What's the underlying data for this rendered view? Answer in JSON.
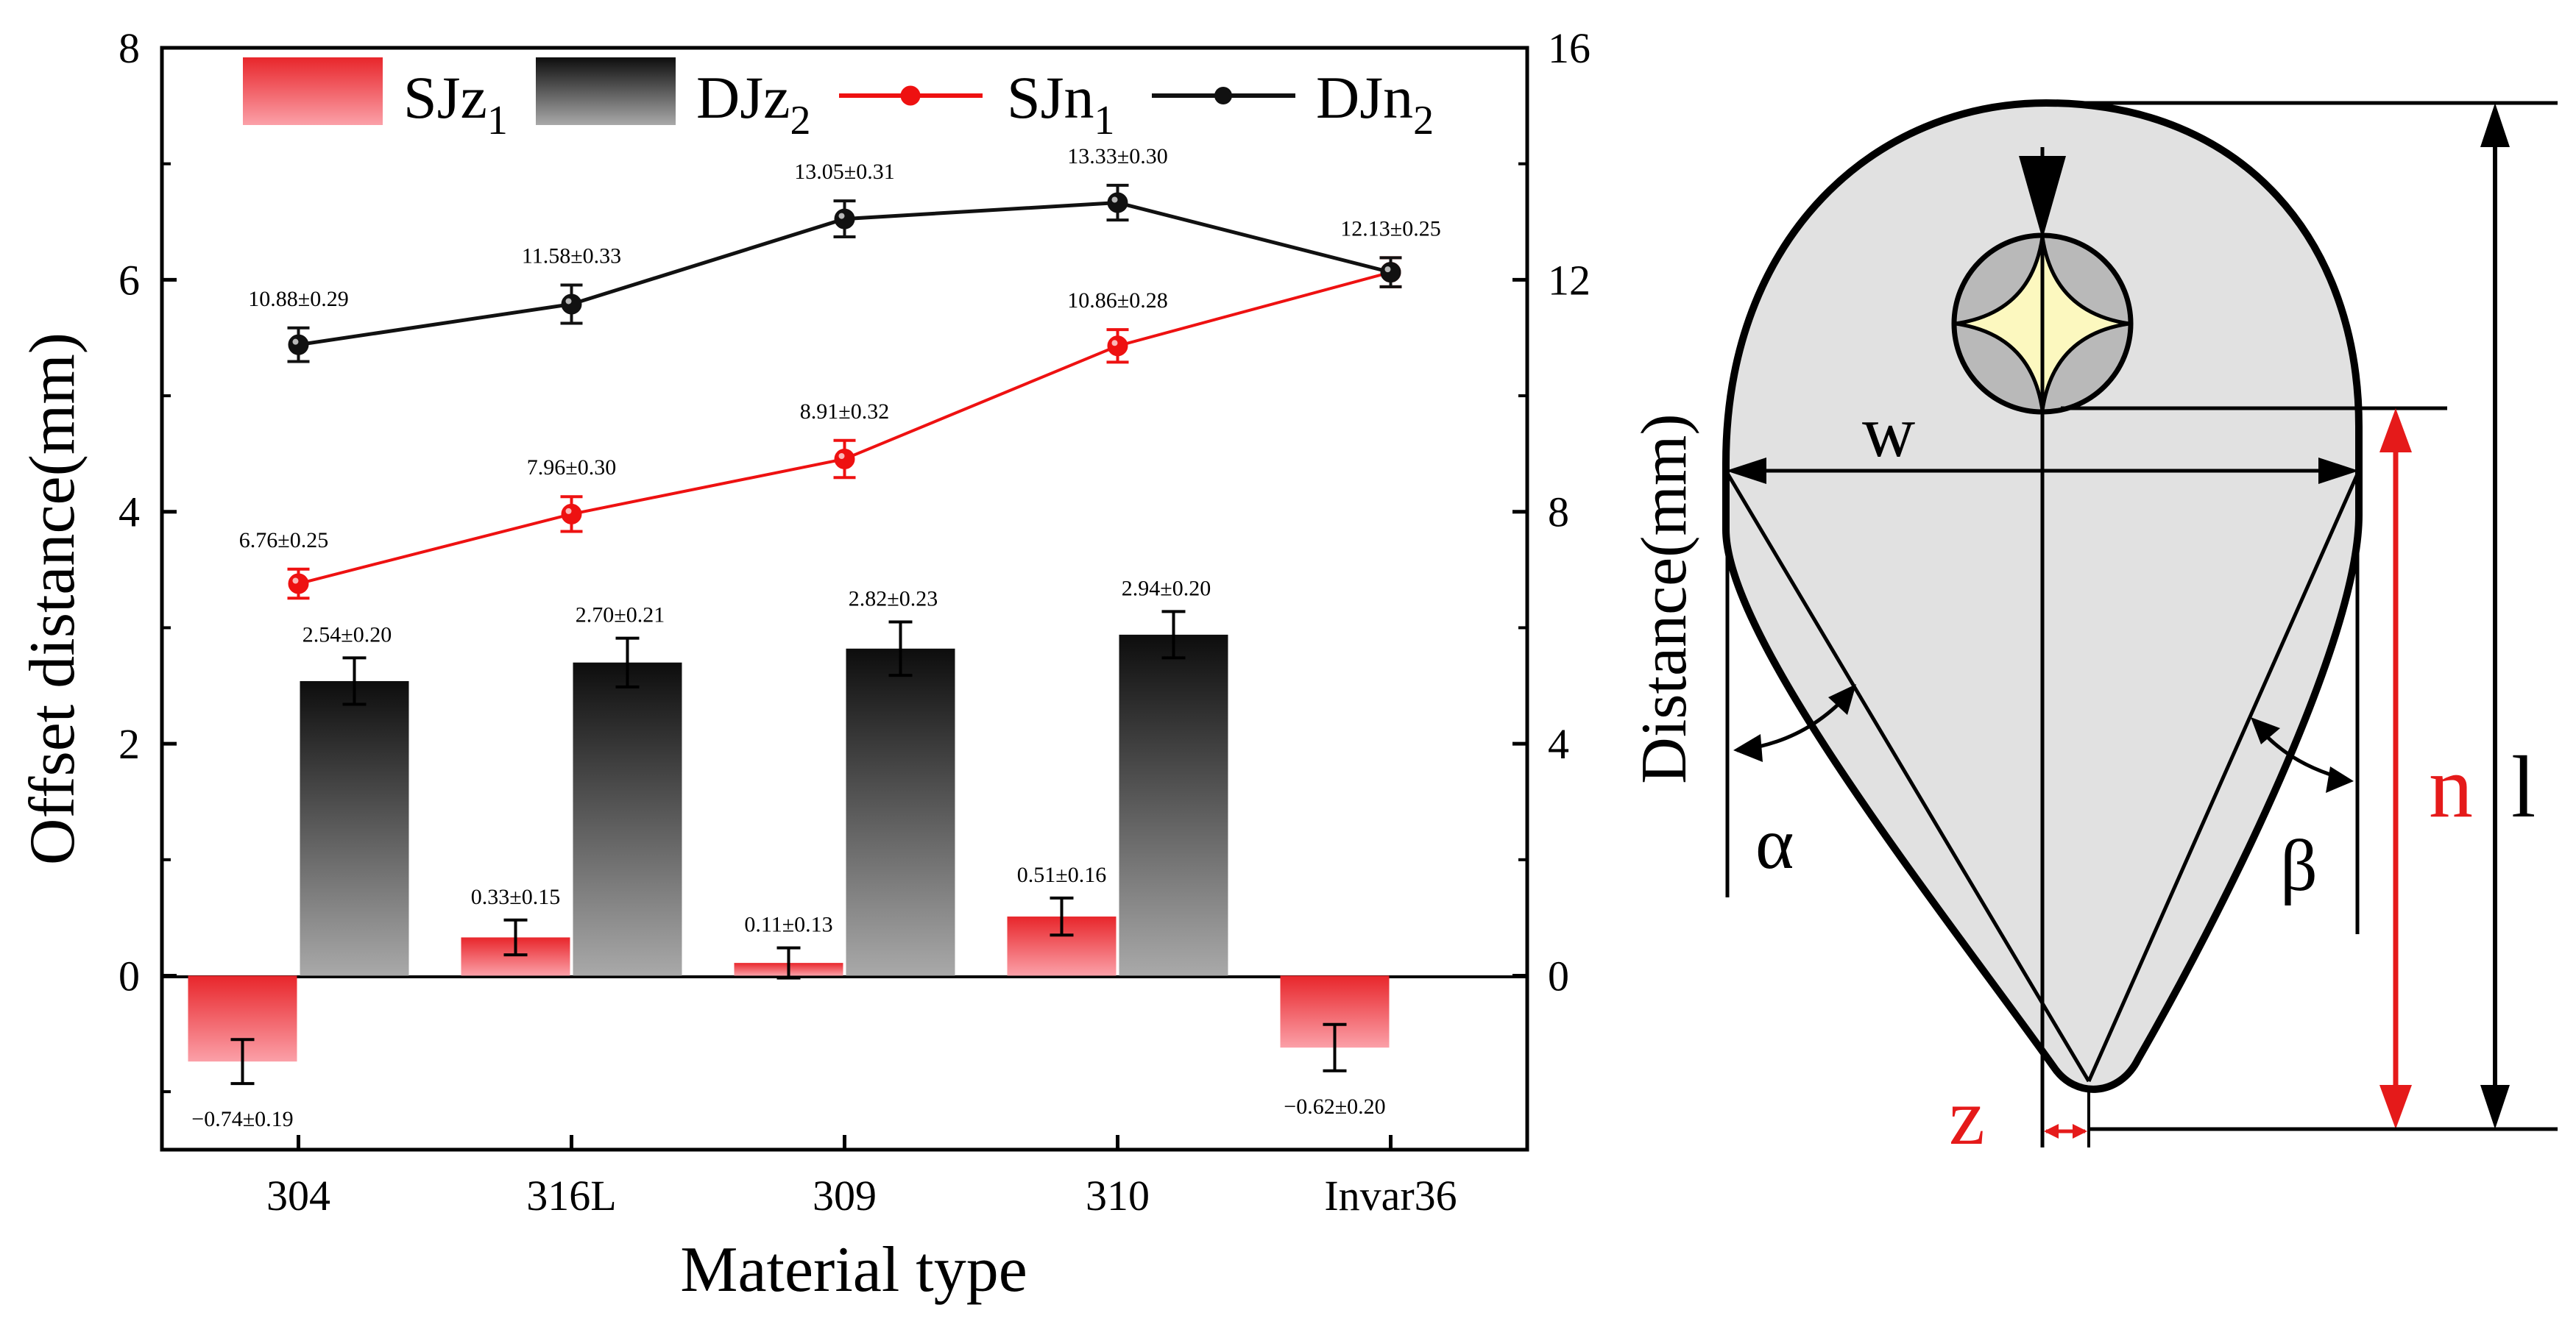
{
  "chart_data": {
    "type": "bar",
    "categories": [
      "304",
      "316L",
      "309",
      "310",
      "Invar36"
    ],
    "xlabel": "Material type",
    "ylabel": "Offset distance(mm)",
    "y2label": "Distance(mm)",
    "ylim": [
      -1.5,
      8
    ],
    "y2lim": [
      -3,
      16
    ],
    "yticks": [
      "0",
      "2",
      "4",
      "6",
      "8"
    ],
    "y2ticks": [
      "0",
      "4",
      "8",
      "12",
      "16"
    ],
    "legend_position": "top",
    "bar_series": [
      {
        "name": "SJz",
        "name_sub": "1",
        "axis": "left",
        "color": "#e8262b",
        "values": [
          -0.74,
          0.33,
          0.11,
          0.51,
          -0.62
        ],
        "errors": [
          0.19,
          0.15,
          0.13,
          0.16,
          0.2
        ],
        "labels": [
          "−0.74±0.19",
          "0.33±0.15",
          "0.11±0.13",
          "0.51±0.16",
          "−0.62±0.20"
        ]
      },
      {
        "name": "DJz",
        "name_sub": "2",
        "axis": "left",
        "color": "#111111",
        "values": [
          2.54,
          2.7,
          2.82,
          2.94,
          null
        ],
        "errors": [
          0.2,
          0.21,
          0.23,
          0.2,
          null
        ],
        "labels": [
          "2.54±0.20",
          "2.70±0.21",
          "2.82±0.23",
          "2.94±0.20",
          ""
        ]
      }
    ],
    "line_series": [
      {
        "name": "SJn",
        "name_sub": "1",
        "axis": "right",
        "color": "#ee1111",
        "values": [
          6.76,
          7.96,
          8.91,
          10.86,
          12.13
        ],
        "errors": [
          0.25,
          0.3,
          0.32,
          0.28,
          0.25
        ],
        "labels": [
          "6.76±0.25",
          "7.96±0.30",
          "8.91±0.32",
          "10.86±0.28",
          ""
        ]
      },
      {
        "name": "DJn",
        "name_sub": "2",
        "axis": "right",
        "color": "#111111",
        "values": [
          10.88,
          11.58,
          13.05,
          13.33,
          12.13
        ],
        "errors": [
          0.29,
          0.33,
          0.31,
          0.3,
          0.25
        ],
        "labels": [
          "10.88±0.29",
          "11.58±0.33",
          "13.05±0.31",
          "13.33±0.30",
          "12.13±0.25"
        ]
      }
    ]
  },
  "diagram": {
    "labels": {
      "w": "w",
      "alpha": "α",
      "beta": "β",
      "n": "n",
      "l": "l",
      "z": "z"
    },
    "colors": {
      "fill": "#e1e1e1",
      "core": "#fcf8bf",
      "accent": "#e51a1a"
    }
  }
}
